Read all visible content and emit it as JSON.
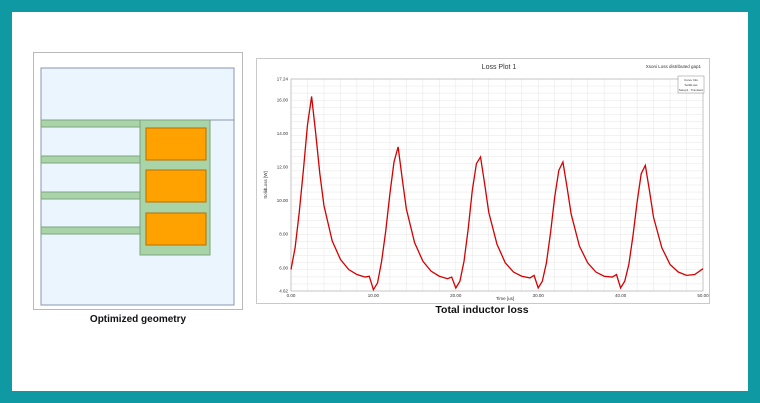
{
  "captions": {
    "geometry": "Optimized geometry",
    "loss": "Total inductor loss"
  },
  "colors": {
    "frame": "#0f9aa3",
    "core_fill": "#eaf5fd",
    "core_stroke": "#8a97ad",
    "leg_fill": "#a8d4a8",
    "leg_stroke": "#7fa57f",
    "winding_fill": "#ffa200",
    "winding_stroke": "#b86d00",
    "curve": "#d40000"
  },
  "chart_data": {
    "type": "line",
    "title": "Loss Plot 1",
    "top_right_label": "Xsoni Loss distributed gap1",
    "xlabel": "Time [us]",
    "ylabel": "SolidLoss [W]",
    "xlim": [
      0,
      50
    ],
    "ylim": [
      4.62,
      17.24
    ],
    "x_ticks": [
      "0.00",
      "10.00",
      "20.00",
      "30.00",
      "40.00",
      "50.00"
    ],
    "y_ticks": [
      "4.62",
      "6.00",
      "8.00",
      "10.00",
      "12.00",
      "14.00",
      "16.00",
      "17.24"
    ],
    "y_tick_values": [
      4.62,
      6,
      8,
      10,
      12,
      14,
      16,
      17.24
    ],
    "legend": {
      "title": "Curve Info",
      "entry": "SolidLoss",
      "setup": "Setup1 : Transient"
    },
    "series": [
      {
        "name": "SolidLoss",
        "x": [
          0,
          0.5,
          1,
          1.5,
          2,
          2.5,
          3,
          3.5,
          4,
          5,
          6,
          7,
          8,
          9,
          9.5,
          10,
          10.5,
          11,
          11.5,
          12,
          12.5,
          13,
          13.5,
          14,
          15,
          16,
          17,
          18,
          19,
          19.5,
          20,
          20.5,
          21,
          21.5,
          22,
          22.5,
          23,
          23.5,
          24,
          25,
          26,
          27,
          28,
          29,
          29.5,
          30,
          30.5,
          31,
          31.5,
          32,
          32.5,
          33,
          33.5,
          34,
          35,
          36,
          37,
          38,
          39,
          39.5,
          40,
          40.5,
          41,
          41.5,
          42,
          42.5,
          43,
          43.5,
          44,
          45,
          46,
          47,
          48,
          49,
          50
        ],
        "y": [
          5.9,
          7.2,
          9.3,
          11.8,
          14.5,
          16.2,
          14.0,
          11.6,
          9.7,
          7.6,
          6.5,
          5.9,
          5.6,
          5.45,
          5.5,
          4.7,
          5.1,
          6.4,
          8.2,
          10.4,
          12.3,
          13.2,
          11.3,
          9.5,
          7.5,
          6.4,
          5.8,
          5.5,
          5.35,
          5.45,
          4.8,
          5.2,
          6.4,
          8.3,
          10.6,
          12.2,
          12.6,
          11.0,
          9.3,
          7.4,
          6.3,
          5.75,
          5.5,
          5.4,
          5.55,
          4.8,
          5.2,
          6.3,
          8.1,
          10.2,
          11.8,
          12.3,
          10.8,
          9.2,
          7.3,
          6.3,
          5.75,
          5.5,
          5.45,
          5.6,
          4.8,
          5.2,
          6.2,
          7.9,
          9.9,
          11.6,
          12.1,
          10.6,
          9.0,
          7.2,
          6.2,
          5.75,
          5.55,
          5.6,
          5.95
        ]
      }
    ]
  }
}
